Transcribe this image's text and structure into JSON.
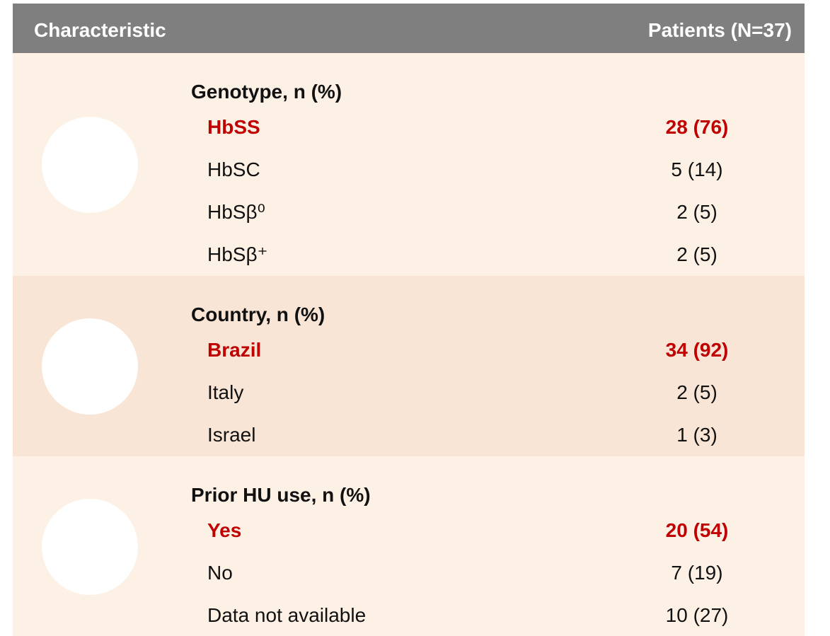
{
  "header": {
    "characteristic": "Characteristic",
    "patients": "Patients (N=37)"
  },
  "sections": [
    {
      "heading": "Genotype, n (%)",
      "rows": [
        {
          "label": "HbSS",
          "value": "28 (76)",
          "highlight": true
        },
        {
          "label": "HbSC",
          "value": "5 (14)",
          "highlight": false
        },
        {
          "label": "HbSβ⁰",
          "value": "2 (5)",
          "highlight": false
        },
        {
          "label": "HbSβ⁺",
          "value": "2 (5)",
          "highlight": false
        }
      ]
    },
    {
      "heading": "Country, n (%)",
      "rows": [
        {
          "label": "Brazil",
          "value": "34 (92)",
          "highlight": true
        },
        {
          "label": "Italy",
          "value": "2 (5)",
          "highlight": false
        },
        {
          "label": "Israel",
          "value": "1 (3)",
          "highlight": false
        }
      ]
    },
    {
      "heading": "Prior HU use, n (%)",
      "rows": [
        {
          "label": "Yes",
          "value": "20 (54)",
          "highlight": true
        },
        {
          "label": "No",
          "value": "7 (19)",
          "highlight": false
        },
        {
          "label": "Data not available",
          "value": "10 (27)",
          "highlight": false
        }
      ]
    }
  ]
}
